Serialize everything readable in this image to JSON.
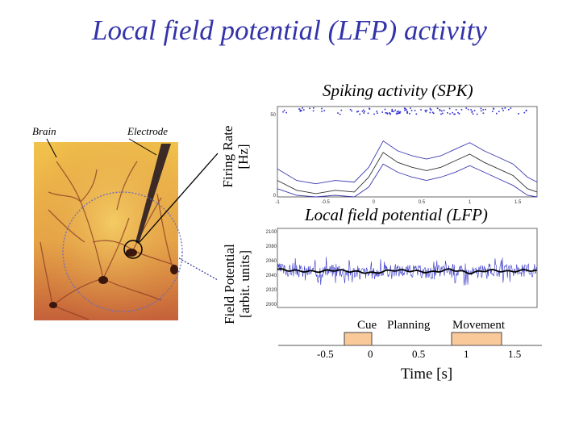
{
  "slide": {
    "title": "Local field potential (LFP) activity"
  },
  "photo": {
    "brain_label": "Brain",
    "electrode_label": "Electrode"
  },
  "spk": {
    "title": "Spiking activity (SPK)",
    "ylabel_line1": "Firing Rate",
    "ylabel_line2": "[Hz]",
    "y_ticks": [
      "0",
      "50"
    ],
    "x_ticks": [
      "-1",
      "-0.5",
      "0",
      "0.5",
      "1",
      "1.5"
    ]
  },
  "lfp": {
    "title": "Local field potential (LFP)",
    "ylabel_line1": "Field Potential",
    "ylabel_line2": "[arbit. units]",
    "y_ticks": [
      "2000",
      "2020",
      "2040",
      "2060",
      "2080",
      "2100"
    ]
  },
  "timeline": {
    "phases": [
      "Cue",
      "Planning",
      "Movement"
    ],
    "x_ticks": [
      "-0.5",
      "0",
      "0.5",
      "1",
      "1.5"
    ],
    "xlabel": "Time [s]",
    "box_color": "#f9c99a"
  },
  "chart_data": [
    {
      "type": "line",
      "title": "Spiking activity (SPK)",
      "xlabel": "",
      "ylabel": "Firing Rate [Hz]",
      "xlim": [
        -1,
        1.7
      ],
      "ylim": [
        0,
        50
      ],
      "x": [
        -1.0,
        -0.8,
        -0.6,
        -0.4,
        -0.2,
        -0.05,
        0.1,
        0.25,
        0.4,
        0.55,
        0.7,
        0.85,
        1.0,
        1.15,
        1.3,
        1.45,
        1.6,
        1.7
      ],
      "series": [
        {
          "values": [
            17,
            10,
            8,
            10,
            9,
            18,
            34,
            28,
            25,
            23,
            25,
            29,
            33,
            28,
            24,
            20,
            12,
            9
          ]
        },
        {
          "values": [
            10,
            4,
            2,
            4,
            3,
            12,
            27,
            21,
            18,
            16,
            18,
            22,
            26,
            21,
            17,
            13,
            5,
            3
          ]
        },
        {
          "values": [
            5,
            1,
            0,
            1,
            0,
            6,
            20,
            15,
            12,
            10,
            12,
            15,
            19,
            15,
            11,
            7,
            1,
            0
          ]
        }
      ]
    },
    {
      "type": "line",
      "title": "Local field potential (LFP)",
      "xlabel": "Time [s]",
      "ylabel": "Field Potential [arbit. units]",
      "ylim": [
        2000,
        2100
      ],
      "x": [
        -1.0,
        -0.8,
        -0.6,
        -0.4,
        -0.2,
        0.0,
        0.2,
        0.4,
        0.6,
        0.8,
        1.0,
        1.2,
        1.4,
        1.6,
        1.7
      ],
      "series": [
        {
          "values": [
            2048,
            2046,
            2045,
            2047,
            2045,
            2043,
            2047,
            2046,
            2044,
            2048,
            2043,
            2047,
            2045,
            2047,
            2046
          ]
        }
      ]
    }
  ]
}
